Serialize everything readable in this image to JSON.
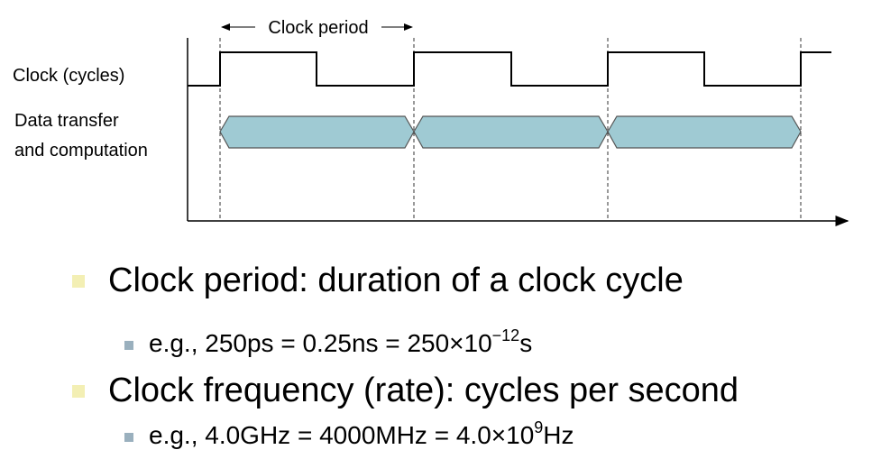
{
  "diagram": {
    "period_label": "Clock period",
    "clock_label": "Clock (cycles)",
    "data_label": [
      "Data transfer",
      "and computation"
    ]
  },
  "bullets": [
    {
      "text": "Clock period: duration of a clock cycle",
      "sub": {
        "before": "e.g., 250ps = 0.25ns = 250×10",
        "sup": "−12",
        "after": "s"
      }
    },
    {
      "text": "Clock frequency (rate): cycles per second",
      "sub": {
        "before": "e.g., 4.0GHz = 4000MHz = 4.0×10",
        "sup": "9",
        "after": "Hz"
      }
    }
  ]
}
